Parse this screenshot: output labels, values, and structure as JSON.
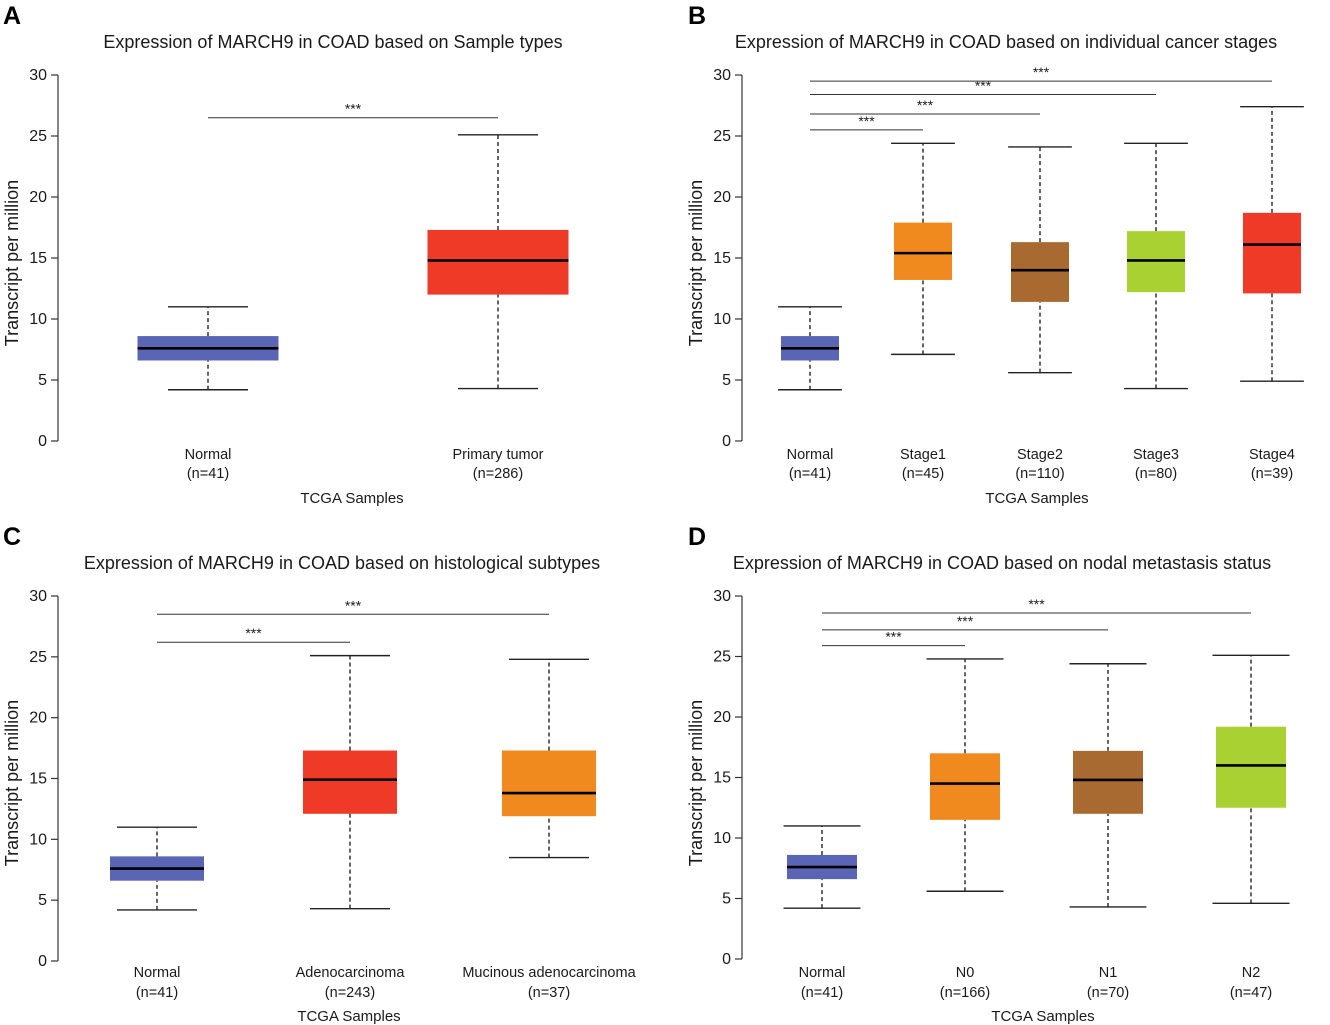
{
  "chart_data": [
    {
      "panel": "A",
      "type": "box",
      "title": "Expression of MARCH9 in COAD based on Sample types",
      "xlabel": "TCGA Samples",
      "ylabel": "Transcript per million",
      "ylim": [
        0,
        30
      ],
      "yticks": [
        0,
        5,
        10,
        15,
        20,
        25,
        30
      ],
      "categories": [
        {
          "name": "Normal",
          "n": "(n=41)",
          "color": "#5a66b5",
          "min": 4.2,
          "q1": 6.6,
          "median": 7.6,
          "q3": 8.6,
          "max": 11.0
        },
        {
          "name": "Primary tumor",
          "n": "(n=286)",
          "color": "#ee3a26",
          "min": 4.3,
          "q1": 12.0,
          "median": 14.8,
          "q3": 17.3,
          "max": 25.1
        }
      ],
      "significance": [
        {
          "from": 0,
          "to": 1,
          "level": 26.5,
          "label": "***"
        }
      ]
    },
    {
      "panel": "B",
      "type": "box",
      "title": "Expression of MARCH9 in COAD based on individual cancer stages",
      "xlabel": "TCGA Samples",
      "ylabel": "Transcript per million",
      "ylim": [
        0,
        30
      ],
      "yticks": [
        0,
        5,
        10,
        15,
        20,
        25,
        30
      ],
      "categories": [
        {
          "name": "Normal",
          "n": "(n=41)",
          "color": "#5a66b5",
          "min": 4.2,
          "q1": 6.6,
          "median": 7.6,
          "q3": 8.6,
          "max": 11.0
        },
        {
          "name": "Stage1",
          "n": "(n=45)",
          "color": "#f08a1e",
          "min": 7.1,
          "q1": 13.2,
          "median": 15.4,
          "q3": 17.9,
          "max": 24.4
        },
        {
          "name": "Stage2",
          "n": "(n=110)",
          "color": "#a96a32",
          "min": 5.6,
          "q1": 11.4,
          "median": 14.0,
          "q3": 16.3,
          "max": 24.1
        },
        {
          "name": "Stage3",
          "n": "(n=80)",
          "color": "#aad132",
          "min": 4.3,
          "q1": 12.2,
          "median": 14.8,
          "q3": 17.2,
          "max": 24.4
        },
        {
          "name": "Stage4",
          "n": "(n=39)",
          "color": "#ee3a26",
          "min": 4.9,
          "q1": 12.1,
          "median": 16.1,
          "q3": 18.7,
          "max": 27.4
        }
      ],
      "significance": [
        {
          "from": 0,
          "to": 1,
          "level": 25.5,
          "label": "***"
        },
        {
          "from": 0,
          "to": 2,
          "level": 26.8,
          "label": "***"
        },
        {
          "from": 0,
          "to": 3,
          "level": 28.4,
          "label": "***"
        },
        {
          "from": 0,
          "to": 4,
          "level": 29.5,
          "label": "***"
        }
      ]
    },
    {
      "panel": "C",
      "type": "box",
      "title": "Expression of MARCH9 in COAD based on histological subtypes",
      "xlabel": "TCGA Samples",
      "ylabel": "Transcript per million",
      "ylim": [
        0,
        30
      ],
      "yticks": [
        0,
        5,
        10,
        15,
        20,
        25,
        30
      ],
      "categories": [
        {
          "name": "Normal",
          "n": "(n=41)",
          "color": "#5a66b5",
          "min": 4.2,
          "q1": 6.6,
          "median": 7.6,
          "q3": 8.6,
          "max": 11.0
        },
        {
          "name": "Adenocarcinoma",
          "n": "(n=243)",
          "color": "#ee3a26",
          "min": 4.3,
          "q1": 12.1,
          "median": 14.9,
          "q3": 17.3,
          "max": 25.1
        },
        {
          "name": "Mucinous adenocarcinoma",
          "n": "(n=37)",
          "color": "#f08a1e",
          "min": 8.5,
          "q1": 11.9,
          "median": 13.8,
          "q3": 17.3,
          "max": 24.8
        }
      ],
      "significance": [
        {
          "from": 0,
          "to": 1,
          "level": 26.2,
          "label": "***"
        },
        {
          "from": 0,
          "to": 2,
          "level": 28.5,
          "label": "***"
        }
      ]
    },
    {
      "panel": "D",
      "type": "box",
      "title": "Expression of MARCH9 in COAD based on nodal metastasis status",
      "xlabel": "TCGA Samples",
      "ylabel": "Transcript per million",
      "ylim": [
        0,
        30
      ],
      "yticks": [
        0,
        5,
        10,
        15,
        20,
        25,
        30
      ],
      "categories": [
        {
          "name": "Normal",
          "n": "(n=41)",
          "color": "#5a66b5",
          "min": 4.2,
          "q1": 6.6,
          "median": 7.6,
          "q3": 8.6,
          "max": 11.0
        },
        {
          "name": "N0",
          "n": "(n=166)",
          "color": "#f08a1e",
          "min": 5.6,
          "q1": 11.5,
          "median": 14.5,
          "q3": 17.0,
          "max": 24.8
        },
        {
          "name": "N1",
          "n": "(n=70)",
          "color": "#a96a32",
          "min": 4.3,
          "q1": 12.0,
          "median": 14.8,
          "q3": 17.2,
          "max": 24.4
        },
        {
          "name": "N2",
          "n": "(n=47)",
          "color": "#aad132",
          "min": 4.6,
          "q1": 12.5,
          "median": 16.0,
          "q3": 19.2,
          "max": 25.1
        }
      ],
      "significance": [
        {
          "from": 0,
          "to": 1,
          "level": 25.9,
          "label": "***"
        },
        {
          "from": 0,
          "to": 2,
          "level": 27.2,
          "label": "***"
        },
        {
          "from": 0,
          "to": 3,
          "level": 28.6,
          "label": "***"
        }
      ]
    }
  ]
}
